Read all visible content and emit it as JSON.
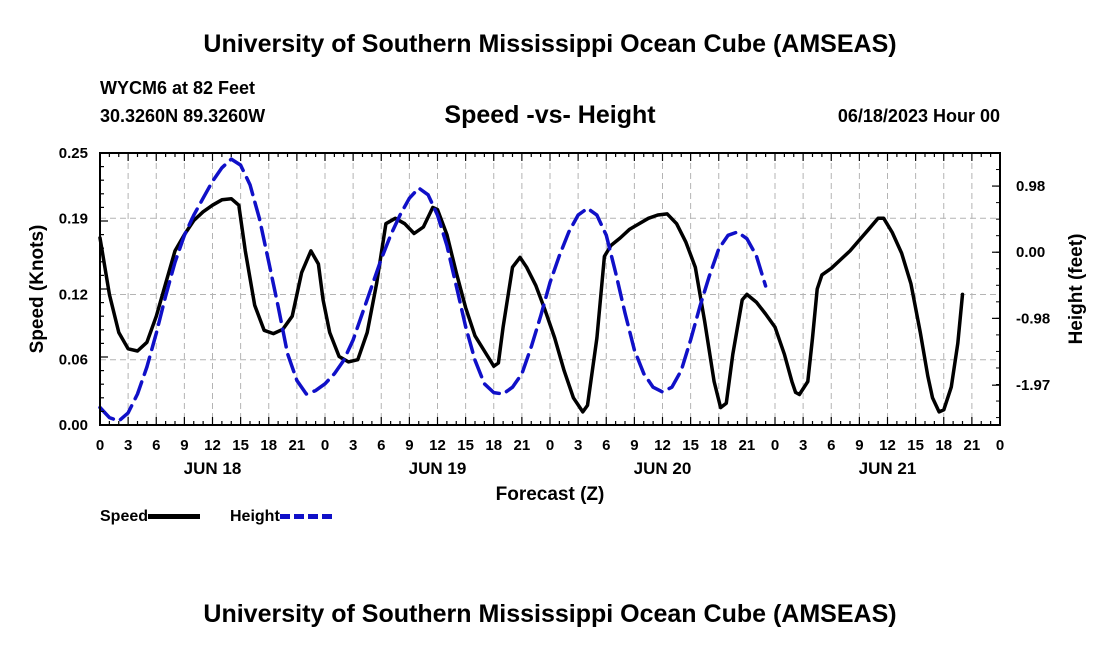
{
  "header": {
    "main_title": "University of Southern Mississippi Ocean Cube (AMSEAS)",
    "station": "WYCM6 at 82 Feet",
    "coords": "30.3260N  89.3260W",
    "subtitle": "Speed -vs- Height",
    "datetime": "06/18/2023 Hour 00"
  },
  "footer": {
    "title": "University of Southern Mississippi Ocean Cube (AMSEAS)"
  },
  "colors": {
    "speed": "#000000",
    "height": "#1010c8",
    "grid": "#b4b4b4"
  },
  "legend": {
    "speed_label": "Speed",
    "height_label": "Height"
  },
  "chart_data": {
    "type": "line",
    "xlabel": "Forecast (Z)",
    "ylabel_left": "Speed (Knots)",
    "ylabel_right": "Height (feet)",
    "xlim": [
      0,
      96
    ],
    "ylim_left": [
      0,
      0.25
    ],
    "ylim_right": [
      -2.56,
      1.47
    ],
    "y_ticks_left": [
      0.0,
      0.06,
      0.12,
      0.19,
      0.25
    ],
    "y_tick_labels_left": [
      "0.00",
      "0.06",
      "0.12",
      "0.19",
      "0.25"
    ],
    "y_ticks_right": [
      0.98,
      0.0,
      -0.98,
      -1.97
    ],
    "y_tick_labels_right": [
      "0.98",
      "0.00",
      "-0.98",
      "-1.97"
    ],
    "x_tick_labels": [
      "0",
      "3",
      "6",
      "9",
      "12",
      "15",
      "18",
      "21",
      "0",
      "3",
      "6",
      "9",
      "12",
      "15",
      "18",
      "21",
      "0",
      "3",
      "6",
      "9",
      "12",
      "15",
      "18",
      "21",
      "0",
      "3",
      "6",
      "9",
      "12",
      "15",
      "18",
      "21",
      "0"
    ],
    "day_labels": [
      {
        "label": "JUN 18",
        "x": 12
      },
      {
        "label": "JUN 19",
        "x": 36
      },
      {
        "label": "JUN 20",
        "x": 60
      },
      {
        "label": "JUN 21",
        "x": 84
      }
    ],
    "series": [
      {
        "name": "Speed",
        "axis": "left",
        "style": "solid",
        "points": [
          [
            0,
            0.172
          ],
          [
            1,
            0.12
          ],
          [
            2,
            0.085
          ],
          [
            3,
            0.07
          ],
          [
            4,
            0.068
          ],
          [
            5,
            0.076
          ],
          [
            6,
            0.1
          ],
          [
            7,
            0.13
          ],
          [
            8,
            0.16
          ],
          [
            9,
            0.175
          ],
          [
            10,
            0.188
          ],
          [
            11,
            0.196
          ],
          [
            12,
            0.202
          ],
          [
            13,
            0.207
          ],
          [
            14,
            0.208
          ],
          [
            14.8,
            0.202
          ],
          [
            15.5,
            0.16
          ],
          [
            16.5,
            0.11
          ],
          [
            17.5,
            0.087
          ],
          [
            18.5,
            0.084
          ],
          [
            19.5,
            0.088
          ],
          [
            20.5,
            0.1
          ],
          [
            21.5,
            0.14
          ],
          [
            22.5,
            0.16
          ],
          [
            23.3,
            0.148
          ],
          [
            23.8,
            0.115
          ],
          [
            24.5,
            0.085
          ],
          [
            25.5,
            0.063
          ],
          [
            26.5,
            0.058
          ],
          [
            27.5,
            0.06
          ],
          [
            28.5,
            0.085
          ],
          [
            29.5,
            0.13
          ],
          [
            30.5,
            0.185
          ],
          [
            31.5,
            0.19
          ],
          [
            32.5,
            0.185
          ],
          [
            33.5,
            0.176
          ],
          [
            34.5,
            0.182
          ],
          [
            35.5,
            0.2
          ],
          [
            36,
            0.198
          ],
          [
            37,
            0.175
          ],
          [
            38,
            0.14
          ],
          [
            39,
            0.108
          ],
          [
            40,
            0.082
          ],
          [
            41,
            0.068
          ],
          [
            42,
            0.054
          ],
          [
            42.5,
            0.057
          ],
          [
            43,
            0.09
          ],
          [
            44,
            0.145
          ],
          [
            44.8,
            0.154
          ],
          [
            45.5,
            0.145
          ],
          [
            46.5,
            0.128
          ],
          [
            47.5,
            0.105
          ],
          [
            48.5,
            0.08
          ],
          [
            49.5,
            0.05
          ],
          [
            50.5,
            0.025
          ],
          [
            51.5,
            0.012
          ],
          [
            52,
            0.018
          ],
          [
            53,
            0.08
          ],
          [
            53.8,
            0.155
          ],
          [
            54.5,
            0.165
          ],
          [
            55.5,
            0.172
          ],
          [
            56.5,
            0.18
          ],
          [
            57.5,
            0.185
          ],
          [
            58.5,
            0.19
          ],
          [
            59.5,
            0.193
          ],
          [
            60.5,
            0.194
          ],
          [
            61.5,
            0.185
          ],
          [
            62.5,
            0.168
          ],
          [
            63.5,
            0.145
          ],
          [
            64.5,
            0.095
          ],
          [
            65.5,
            0.04
          ],
          [
            66.2,
            0.016
          ],
          [
            66.8,
            0.02
          ],
          [
            67.5,
            0.065
          ],
          [
            68.5,
            0.115
          ],
          [
            69,
            0.12
          ],
          [
            70,
            0.113
          ],
          [
            71,
            0.102
          ],
          [
            72,
            0.09
          ],
          [
            73,
            0.065
          ],
          [
            73.8,
            0.04
          ],
          [
            74.2,
            0.03
          ],
          [
            74.6,
            0.028
          ],
          [
            75.5,
            0.04
          ],
          [
            76,
            0.08
          ],
          [
            76.5,
            0.125
          ],
          [
            77,
            0.138
          ],
          [
            78,
            0.144
          ],
          [
            79,
            0.152
          ],
          [
            80,
            0.16
          ],
          [
            81,
            0.17
          ],
          [
            82,
            0.18
          ],
          [
            83,
            0.19
          ],
          [
            83.6,
            0.19
          ],
          [
            84.5,
            0.177
          ],
          [
            85.5,
            0.158
          ],
          [
            86.5,
            0.13
          ],
          [
            87.5,
            0.085
          ],
          [
            88.3,
            0.045
          ],
          [
            88.8,
            0.025
          ],
          [
            89.5,
            0.012
          ],
          [
            90,
            0.014
          ],
          [
            90.8,
            0.035
          ],
          [
            91.5,
            0.075
          ],
          [
            92,
            0.12
          ]
        ]
      },
      {
        "name": "Height",
        "axis": "right",
        "style": "dashed",
        "points": [
          [
            0,
            -2.3
          ],
          [
            1,
            -2.45
          ],
          [
            2,
            -2.5
          ],
          [
            3,
            -2.38
          ],
          [
            4,
            -2.1
          ],
          [
            5,
            -1.7
          ],
          [
            6,
            -1.2
          ],
          [
            7,
            -0.65
          ],
          [
            8,
            -0.15
          ],
          [
            9,
            0.25
          ],
          [
            10,
            0.55
          ],
          [
            11,
            0.8
          ],
          [
            12,
            1.05
          ],
          [
            13,
            1.25
          ],
          [
            14,
            1.38
          ],
          [
            15,
            1.29
          ],
          [
            16,
            1.0
          ],
          [
            17,
            0.5
          ],
          [
            18,
            -0.15
          ],
          [
            19,
            -0.8
          ],
          [
            20,
            -1.5
          ],
          [
            21,
            -1.9
          ],
          [
            22,
            -2.1
          ],
          [
            23,
            -2.05
          ],
          [
            24,
            -1.95
          ],
          [
            25,
            -1.8
          ],
          [
            26,
            -1.6
          ],
          [
            27,
            -1.3
          ],
          [
            28,
            -0.9
          ],
          [
            29,
            -0.5
          ],
          [
            30,
            -0.1
          ],
          [
            31,
            0.25
          ],
          [
            32,
            0.55
          ],
          [
            33,
            0.8
          ],
          [
            34,
            0.95
          ],
          [
            35,
            0.85
          ],
          [
            36,
            0.55
          ],
          [
            37,
            0.1
          ],
          [
            38,
            -0.5
          ],
          [
            39,
            -1.1
          ],
          [
            40,
            -1.6
          ],
          [
            41,
            -1.95
          ],
          [
            42,
            -2.08
          ],
          [
            43,
            -2.1
          ],
          [
            44,
            -2.0
          ],
          [
            45,
            -1.8
          ],
          [
            46,
            -1.4
          ],
          [
            47,
            -0.95
          ],
          [
            48,
            -0.45
          ],
          [
            49,
            -0.05
          ],
          [
            50,
            0.3
          ],
          [
            51,
            0.55
          ],
          [
            52,
            0.65
          ],
          [
            53,
            0.55
          ],
          [
            54,
            0.25
          ],
          [
            55,
            -0.3
          ],
          [
            56,
            -0.9
          ],
          [
            57,
            -1.45
          ],
          [
            58,
            -1.8
          ],
          [
            59,
            -2.0
          ],
          [
            60,
            -2.07
          ],
          [
            61,
            -2.0
          ],
          [
            62,
            -1.75
          ],
          [
            63,
            -1.3
          ],
          [
            64,
            -0.8
          ],
          [
            65,
            -0.35
          ],
          [
            66,
            0.05
          ],
          [
            67,
            0.25
          ],
          [
            68,
            0.3
          ],
          [
            69,
            0.2
          ],
          [
            70,
            -0.05
          ],
          [
            71,
            -0.5
          ]
        ]
      }
    ]
  }
}
